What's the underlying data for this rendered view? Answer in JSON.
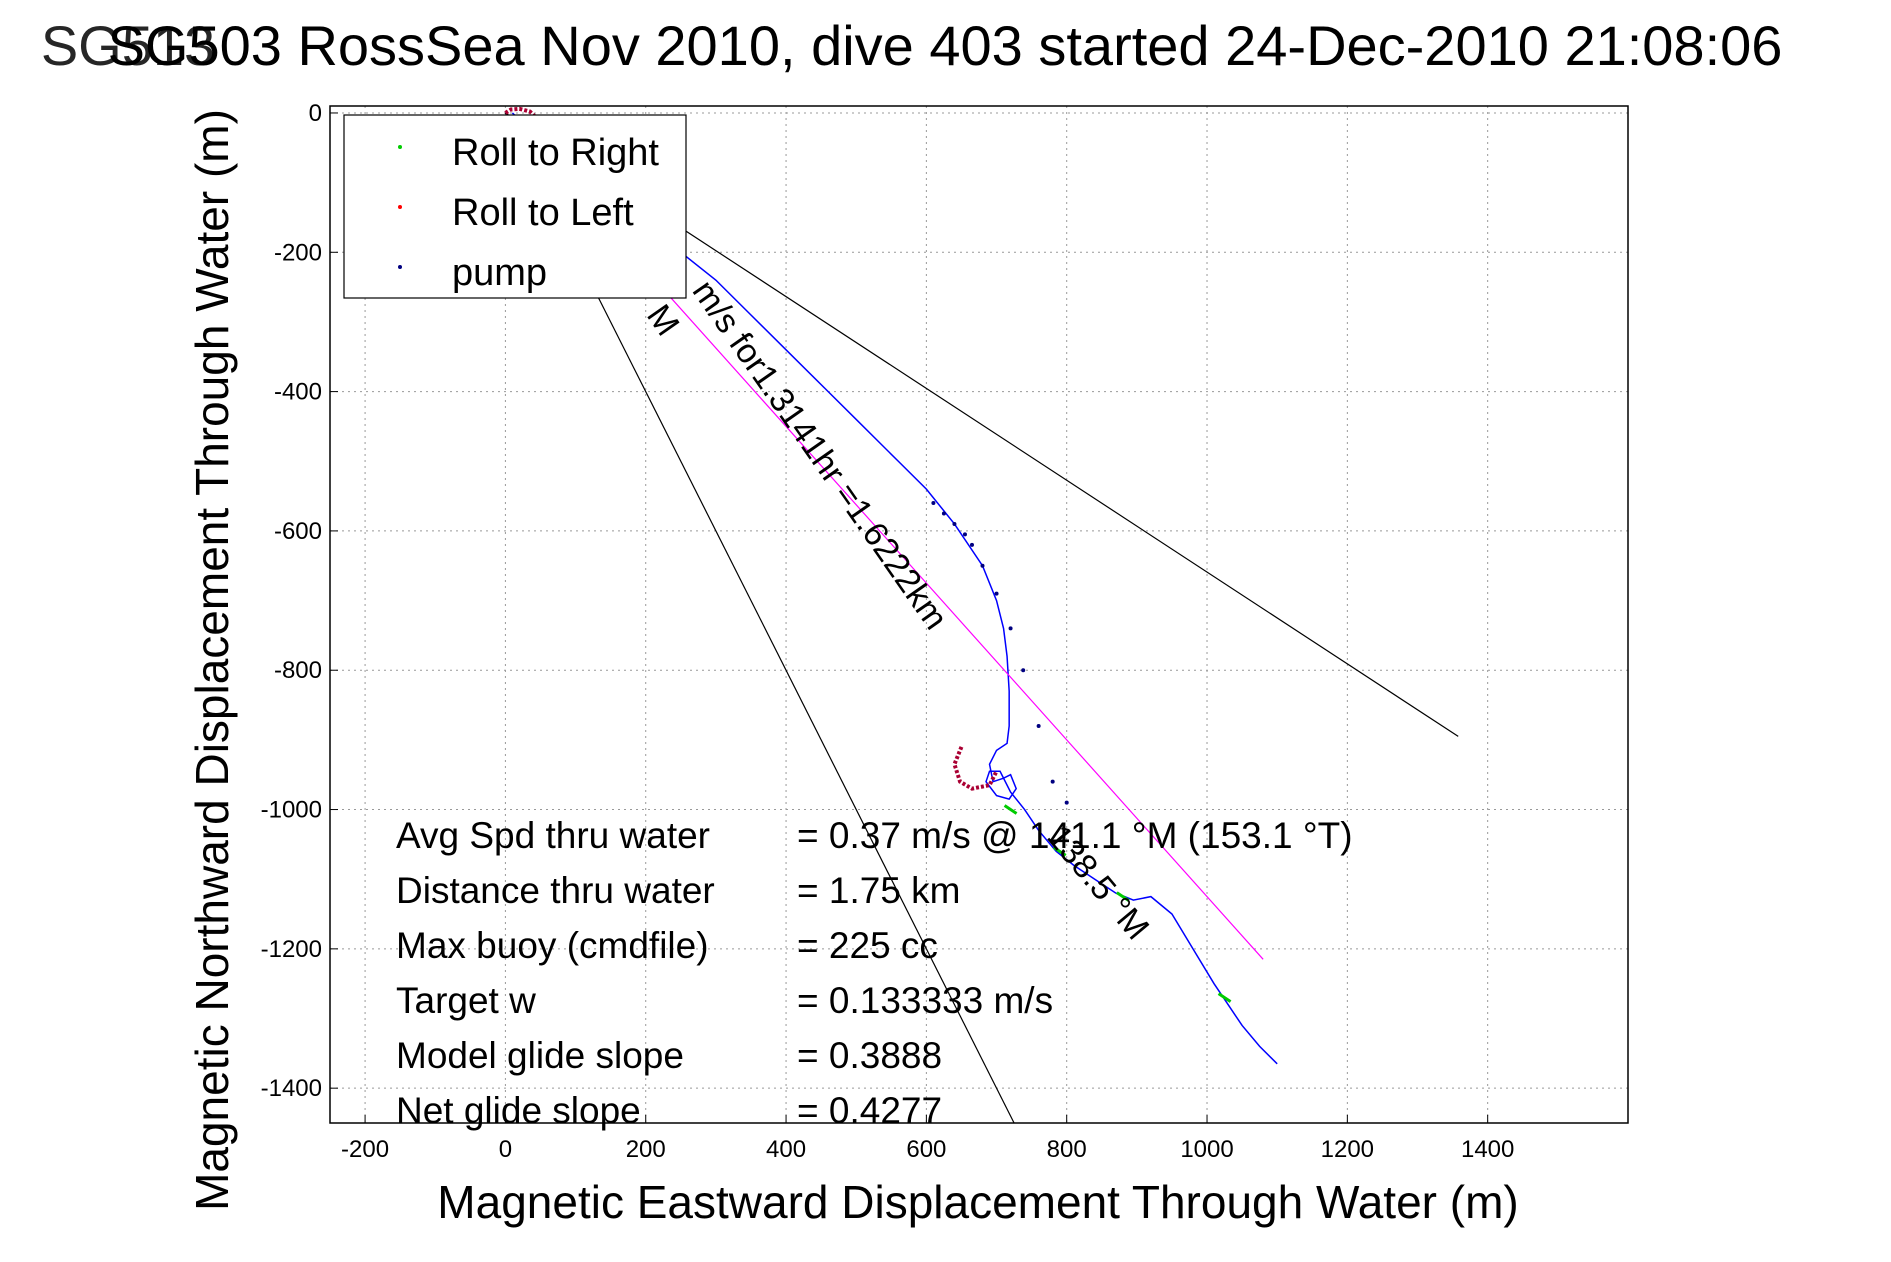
{
  "chart_data": {
    "type": "line",
    "title": "SG503 RossSea Nov 2010, dive 403 started 24-Dec-2010 21:08:06",
    "title_overlap_text": "SG513",
    "xlabel": "Magnetic Eastward Displacement Through Water (m)",
    "ylabel": "Magnetic Northward Displacement Through Water (m)",
    "xlim": [
      -250,
      1600
    ],
    "ylim": [
      -1450,
      10
    ],
    "x_ticks": [
      -200,
      0,
      200,
      400,
      600,
      800,
      1000,
      1200,
      1400
    ],
    "y_ticks": [
      0,
      -200,
      -400,
      -600,
      -800,
      -1000,
      -1200,
      -1400
    ],
    "grid": true,
    "legend_position": "top-left",
    "legend": [
      {
        "label": "Roll to Right",
        "color": "#00cc00"
      },
      {
        "label": "Roll to Left",
        "color": "#ff0000"
      },
      {
        "label": "pump",
        "color": "#000080"
      }
    ],
    "colors": {
      "track": "#0000ff",
      "dead_reckoning": "#ff00ff",
      "heading_lines": "#000000",
      "grid": "#999999",
      "turn_loop": "#aa0033"
    },
    "series": [
      {
        "role": "track",
        "x": [
          10,
          30,
          60,
          100,
          150,
          200,
          250,
          300,
          350,
          400,
          450,
          500,
          560,
          600,
          640,
          680,
          700,
          710,
          715,
          718,
          718,
          715,
          700,
          690,
          695,
          710,
          720,
          728,
          718,
          700,
          685,
          690,
          705,
          720,
          740,
          760,
          785,
          810,
          840,
          870,
          895,
          920,
          950,
          980,
          1010,
          1030,
          1050,
          1075,
          1100
        ],
        "y": [
          0,
          -20,
          -50,
          -80,
          -120,
          -160,
          -200,
          -240,
          -290,
          -340,
          -390,
          -440,
          -500,
          -540,
          -590,
          -650,
          -700,
          -740,
          -780,
          -830,
          -880,
          -905,
          -915,
          -935,
          -960,
          -955,
          -950,
          -970,
          -985,
          -980,
          -960,
          -945,
          -945,
          -975,
          -1000,
          -1030,
          -1060,
          -1080,
          -1100,
          -1120,
          -1130,
          -1125,
          -1150,
          -1200,
          -1250,
          -1280,
          -1310,
          -1340,
          -1365
        ]
      },
      {
        "role": "dead_reckoning",
        "x": [
          0,
          200,
          400,
          600,
          800,
          1000,
          1080
        ],
        "y": [
          0,
          -225,
          -450,
          -675,
          -900,
          -1125,
          -1215
        ]
      },
      {
        "role": "heading_line",
        "x": [
          0,
          1358
        ],
        "y": [
          0,
          -895
        ]
      },
      {
        "role": "heading_line",
        "x": [
          0,
          725
        ],
        "y": [
          0,
          -1450
        ]
      }
    ],
    "markers": {
      "roll_right": {
        "x": [
          720,
          790,
          880,
          1025
        ],
        "y": [
          -1000,
          -1060,
          -1125,
          -1270
        ]
      },
      "roll_left_loops": [
        {
          "x": [
            0,
            8,
            20,
            35,
            45,
            40,
            28
          ],
          "y": [
            0,
            5,
            6,
            2,
            -8,
            -20,
            -30
          ]
        },
        {
          "x": [
            650,
            640,
            648,
            665,
            690,
            700
          ],
          "y": [
            -910,
            -935,
            -960,
            -970,
            -965,
            -945
          ]
        }
      ],
      "pump": {
        "x": [
          610,
          625,
          640,
          655,
          665,
          680,
          700,
          720,
          738,
          760,
          780,
          800
        ],
        "y": [
          -560,
          -575,
          -590,
          -605,
          -620,
          -650,
          -690,
          -740,
          -800,
          -880,
          -960,
          -990
        ]
      }
    },
    "annotations": [
      {
        "text": "m/s for1.3141hr =1.6222km",
        "x": 265,
        "y": -255
      },
      {
        "text": "M",
        "x": 200,
        "y": -290
      },
      {
        "text": "138.5 °M",
        "x": 770,
        "y": -1040
      }
    ],
    "stats": [
      {
        "label": "Avg Spd thru water",
        "value": "=  0.37 m/s @ 141.1 °M (153.1 °T)"
      },
      {
        "label": "Distance thru water",
        "value": "=  1.75 km"
      },
      {
        "label": "Max buoy (cmdfile)",
        "value": "= 225 cc"
      },
      {
        "label": "Target w",
        "value": "= 0.133333 m/s"
      },
      {
        "label": "Model glide slope",
        "value": "= 0.3888"
      },
      {
        "label": "Net glide slope",
        "value": "= 0.4277"
      }
    ]
  }
}
